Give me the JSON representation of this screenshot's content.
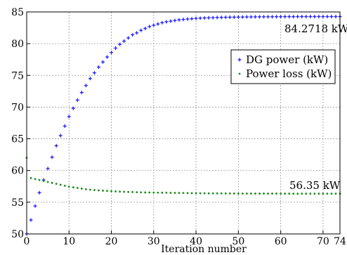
{
  "chart_data": {
    "type": "scatter",
    "title": "",
    "xlabel": "Iteration number",
    "ylabel": "",
    "xlim": [
      0,
      74
    ],
    "ylim": [
      50,
      85
    ],
    "x_ticks": [
      0,
      10,
      20,
      30,
      40,
      50,
      60,
      70,
      74
    ],
    "y_ticks": [
      50,
      55,
      60,
      65,
      70,
      75,
      80,
      85
    ],
    "grid": true,
    "legend_position": "right",
    "series": [
      {
        "name": "DG power (kW)",
        "marker": "plus",
        "color": "#1f1fff",
        "x": [
          0,
          1,
          2,
          3,
          4,
          5,
          6,
          7,
          8,
          9,
          10,
          11,
          12,
          13,
          14,
          15,
          16,
          17,
          18,
          19,
          20,
          21,
          22,
          23,
          24,
          25,
          26,
          27,
          28,
          29,
          30,
          31,
          32,
          33,
          34,
          35,
          36,
          37,
          38,
          39,
          40,
          41,
          42,
          43,
          44,
          45,
          46,
          47,
          48,
          49,
          50,
          51,
          52,
          53,
          54,
          55,
          56,
          57,
          58,
          59,
          60,
          61,
          62,
          63,
          64,
          65,
          66,
          67,
          68,
          69,
          70,
          71,
          72,
          73,
          74
        ],
        "values": [
          50.0,
          52.2,
          54.4,
          56.5,
          58.5,
          60.3,
          62.1,
          63.9,
          65.5,
          67.0,
          68.5,
          69.8,
          71.1,
          72.3,
          73.4,
          74.5,
          75.4,
          76.3,
          77.1,
          77.9,
          78.6,
          79.3,
          79.9,
          80.4,
          80.9,
          81.4,
          81.7,
          82.1,
          82.4,
          82.7,
          82.9,
          83.1,
          83.3,
          83.45,
          83.55,
          83.65,
          83.75,
          83.82,
          83.88,
          83.93,
          83.98,
          84.02,
          84.05,
          84.08,
          84.1,
          84.12,
          84.14,
          84.16,
          84.17,
          84.18,
          84.19,
          84.2,
          84.21,
          84.22,
          84.23,
          84.23,
          84.24,
          84.24,
          84.25,
          84.25,
          84.26,
          84.26,
          84.26,
          84.26,
          84.27,
          84.27,
          84.27,
          84.27,
          84.27,
          84.27,
          84.27,
          84.27,
          84.27,
          84.27,
          84.2718
        ]
      },
      {
        "name": "Power loss (kW)",
        "marker": "dot",
        "color": "#1a8a1a",
        "x": [
          0,
          1,
          2,
          3,
          4,
          5,
          6,
          7,
          8,
          9,
          10,
          11,
          12,
          13,
          14,
          15,
          16,
          17,
          18,
          19,
          20,
          21,
          22,
          23,
          24,
          25,
          26,
          27,
          28,
          29,
          30,
          31,
          32,
          33,
          34,
          35,
          36,
          37,
          38,
          39,
          40,
          41,
          42,
          43,
          44,
          45,
          46,
          47,
          48,
          49,
          50,
          51,
          52,
          53,
          54,
          55,
          56,
          57,
          58,
          59,
          60,
          61,
          62,
          63,
          64,
          65,
          66,
          67,
          68,
          69,
          70,
          71,
          72,
          73,
          74
        ],
        "values": [
          62.0,
          58.8,
          58.65,
          58.5,
          58.35,
          58.2,
          58.05,
          57.9,
          57.75,
          57.6,
          57.45,
          57.35,
          57.25,
          57.15,
          57.05,
          56.98,
          56.92,
          56.87,
          56.82,
          56.78,
          56.74,
          56.7,
          56.67,
          56.64,
          56.62,
          56.6,
          56.58,
          56.56,
          56.54,
          56.53,
          56.52,
          56.51,
          56.5,
          56.49,
          56.48,
          56.47,
          56.46,
          56.45,
          56.44,
          56.43,
          56.42,
          56.41,
          56.41,
          56.4,
          56.4,
          56.39,
          56.39,
          56.38,
          56.38,
          56.38,
          56.37,
          56.37,
          56.37,
          56.37,
          56.36,
          56.36,
          56.36,
          56.36,
          56.36,
          56.36,
          56.36,
          56.35,
          56.35,
          56.35,
          56.35,
          56.35,
          56.35,
          56.35,
          56.35,
          56.35,
          56.35,
          56.35,
          56.35,
          56.35,
          56.35
        ]
      }
    ],
    "annotations": [
      {
        "text": "84.2718 kW",
        "x": 62,
        "y": 84.27
      },
      {
        "text": "56.35 kW",
        "x": 62,
        "y": 56.35
      }
    ]
  }
}
